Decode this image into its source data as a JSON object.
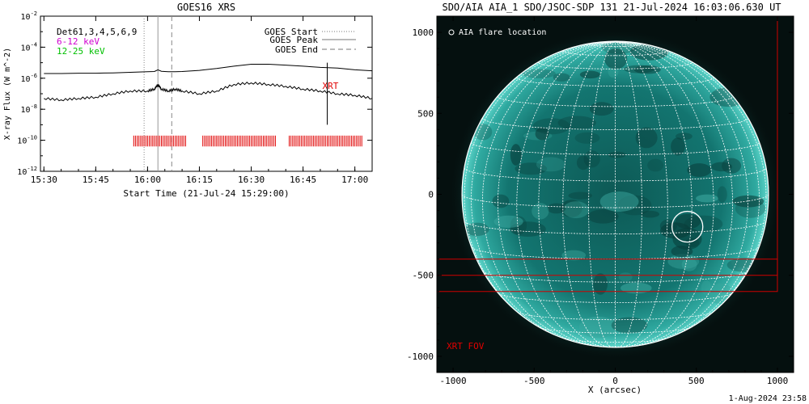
{
  "colors": {
    "hard_flux": "#000000",
    "soft_flux": "#000000",
    "event_marks": "#e00000",
    "xrt_label": "#e00000",
    "xrt_fov": "#d00000",
    "aia_disk": "#0f6f6a",
    "aia_background": "#05100f",
    "grid": "#ffffff",
    "legend_6_12": "#d000d0",
    "legend_12_25": "#00c000"
  },
  "icons": {
    "flare_marker": "circle-outline-icon"
  },
  "footer": {
    "timestamp": "1-Aug-2024 23:58"
  },
  "chart_data": [
    {
      "type": "line",
      "title": "GOES16 XRS",
      "xlabel": "Start Time (21-Jul-24 15:29:00)",
      "ylabel": "X-ray Flux (W m^-2)",
      "y_scale": "log",
      "ylim": [
        1e-12,
        0.01
      ],
      "xlim": [
        "15:29",
        "17:05"
      ],
      "x_tick_labels": [
        "15:30",
        "15:45",
        "16:00",
        "16:15",
        "16:30",
        "16:45",
        "17:00"
      ],
      "y_tick_labels": [
        "10^-12",
        "10^-10",
        "10^-8",
        "10^-6",
        "10^-4",
        "10^-2"
      ],
      "legend_left": [
        "Det61,3,4,5,6,9",
        "6-12 keV",
        "12-25 keV"
      ],
      "legend_right": [
        "GOES Start",
        "GOES Peak",
        "GOES End"
      ],
      "annotation": "XRT",
      "grid": false,
      "goes_start": "15:59",
      "goes_peak": "16:03",
      "goes_end": "16:07",
      "xrt_mark_time": "16:52",
      "series": [
        {
          "x": [
            "15:30",
            "15:35",
            "15:40",
            "15:45",
            "15:50",
            "15:55",
            "16:00",
            "16:02",
            "16:03",
            "16:04",
            "16:06",
            "16:08",
            "16:10",
            "16:15",
            "16:20",
            "16:25",
            "16:30",
            "16:35",
            "16:40",
            "16:45",
            "16:50",
            "16:55",
            "17:00",
            "17:05"
          ],
          "values": [
            2e-06,
            2e-06,
            2.1e-06,
            2.1e-06,
            2.2e-06,
            2.4e-06,
            2.6e-06,
            2.7e-06,
            3.5e-06,
            2.8e-06,
            2.6e-06,
            2.6e-06,
            2.7e-06,
            3.2e-06,
            4.2e-06,
            6e-06,
            8e-06,
            8e-06,
            7e-06,
            6e-06,
            5e-06,
            4.5e-06,
            3.5e-06,
            3e-06
          ]
        },
        {
          "x": [
            "15:30",
            "15:35",
            "15:40",
            "15:45",
            "15:50",
            "15:55",
            "16:00",
            "16:02",
            "16:03",
            "16:04",
            "16:06",
            "16:08",
            "16:10",
            "16:15",
            "16:20",
            "16:25",
            "16:30",
            "16:35",
            "16:40",
            "16:45",
            "16:50",
            "16:55",
            "17:00",
            "17:05"
          ],
          "values": [
            5e-08,
            4e-08,
            5e-08,
            6e-08,
            1e-07,
            1.5e-07,
            1.5e-07,
            2e-07,
            4e-07,
            2e-07,
            1.5e-07,
            2e-07,
            1.5e-07,
            1e-07,
            1.5e-07,
            4e-07,
            5e-07,
            4e-07,
            3e-07,
            2e-07,
            1.5e-07,
            1e-07,
            8e-08,
            5e-08
          ]
        }
      ],
      "xrt_observations": [
        {
          "start": "15:56",
          "end": "16:11"
        },
        {
          "start": "16:16",
          "end": "16:37"
        },
        {
          "start": "16:41",
          "end": "17:02"
        }
      ]
    },
    {
      "type": "scatter",
      "title": "SDO/AIA AIA_1 SDO/JSOC-SDP 131 21-Jul-2024 16:03:06.630 UT",
      "xlabel": "X (arcsec)",
      "ylabel": "",
      "xlim": [
        -1100,
        1100
      ],
      "ylim": [
        -1100,
        1100
      ],
      "x_tick_labels": [
        "-1000",
        "-500",
        "0",
        "500",
        "1000"
      ],
      "y_tick_labels": [
        "1000",
        "500",
        "0",
        "-500",
        "-1000"
      ],
      "legend": "AIA flare location",
      "fov_label": "XRT FOV",
      "solar_radius_arcsec": 945,
      "flare_location": {
        "x": 445,
        "y": -200,
        "radius": 95
      },
      "xrt_fov_boxes": [
        {
          "x0": -1100,
          "x1": 1000,
          "y0": -600,
          "y1": 1100
        },
        {
          "x0": -1100,
          "x1": 1000,
          "y0": -500,
          "y1": -400
        }
      ]
    }
  ]
}
